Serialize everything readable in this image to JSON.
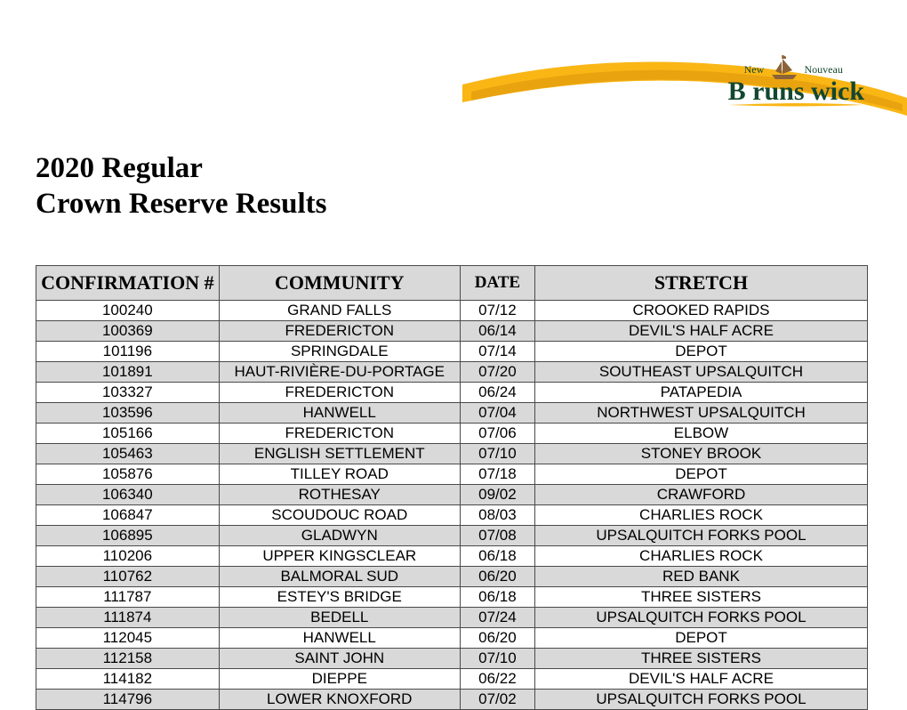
{
  "logo": {
    "brand_main": "Brunswick",
    "brand_small_left": "New",
    "brand_small_right": "Nouveau",
    "text_color": "#13472f",
    "swoosh_outer": "#f9b615",
    "swoosh_inner": "#e9a30f",
    "ship_color": "#8c6239"
  },
  "title": {
    "line1": "2020 Regular",
    "line2": "Crown Reserve Results"
  },
  "table": {
    "headers": {
      "confirmation": "CONFIRMATION #",
      "community": "COMMUNITY",
      "date": "DATE",
      "stretch": "STRETCH"
    },
    "header_bg": "#d9d9d9",
    "row_shade_bg": "#d9d9d9",
    "row_plain_bg": "#ffffff",
    "border_color": "#4a4a4a",
    "header_font_family": "Times New Roman",
    "header_font_size": 22,
    "cell_font_family": "Arial",
    "cell_font_size": 17,
    "columns": [
      {
        "key": "confirmation",
        "width_pct": 22
      },
      {
        "key": "community",
        "width_pct": 29
      },
      {
        "key": "date",
        "width_pct": 9
      },
      {
        "key": "stretch",
        "width_pct": 40
      }
    ],
    "rows": [
      {
        "confirmation": "100240",
        "community": "GRAND FALLS",
        "date": "07/12",
        "stretch": "CROOKED RAPIDS"
      },
      {
        "confirmation": "100369",
        "community": "FREDERICTON",
        "date": "06/14",
        "stretch": "DEVIL'S HALF ACRE"
      },
      {
        "confirmation": "101196",
        "community": "SPRINGDALE",
        "date": "07/14",
        "stretch": "DEPOT"
      },
      {
        "confirmation": "101891",
        "community": "HAUT-RIVIÈRE-DU-PORTAGE",
        "date": "07/20",
        "stretch": "SOUTHEAST UPSALQUITCH"
      },
      {
        "confirmation": "103327",
        "community": "FREDERICTON",
        "date": "06/24",
        "stretch": "PATAPEDIA"
      },
      {
        "confirmation": "103596",
        "community": "HANWELL",
        "date": "07/04",
        "stretch": "NORTHWEST UPSALQUITCH"
      },
      {
        "confirmation": "105166",
        "community": "FREDERICTON",
        "date": "07/06",
        "stretch": "ELBOW"
      },
      {
        "confirmation": "105463",
        "community": "ENGLISH SETTLEMENT",
        "date": "07/10",
        "stretch": "STONEY BROOK"
      },
      {
        "confirmation": "105876",
        "community": "TILLEY ROAD",
        "date": "07/18",
        "stretch": "DEPOT"
      },
      {
        "confirmation": "106340",
        "community": "ROTHESAY",
        "date": "09/02",
        "stretch": "CRAWFORD"
      },
      {
        "confirmation": "106847",
        "community": "SCOUDOUC ROAD",
        "date": "08/03",
        "stretch": "CHARLIES ROCK"
      },
      {
        "confirmation": "106895",
        "community": "GLADWYN",
        "date": "07/08",
        "stretch": "UPSALQUITCH FORKS POOL"
      },
      {
        "confirmation": "110206",
        "community": "UPPER KINGSCLEAR",
        "date": "06/18",
        "stretch": "CHARLIES ROCK"
      },
      {
        "confirmation": "110762",
        "community": "BALMORAL SUD",
        "date": "06/20",
        "stretch": "RED BANK"
      },
      {
        "confirmation": "111787",
        "community": "ESTEY'S BRIDGE",
        "date": "06/18",
        "stretch": "THREE SISTERS"
      },
      {
        "confirmation": "111874",
        "community": "BEDELL",
        "date": "07/24",
        "stretch": "UPSALQUITCH FORKS POOL"
      },
      {
        "confirmation": "112045",
        "community": "HANWELL",
        "date": "06/20",
        "stretch": "DEPOT"
      },
      {
        "confirmation": "112158",
        "community": "SAINT JOHN",
        "date": "07/10",
        "stretch": "THREE SISTERS"
      },
      {
        "confirmation": "114182",
        "community": "DIEPPE",
        "date": "06/22",
        "stretch": "DEVIL'S HALF ACRE"
      },
      {
        "confirmation": "114796",
        "community": "LOWER KNOXFORD",
        "date": "07/02",
        "stretch": "UPSALQUITCH FORKS POOL"
      }
    ]
  }
}
